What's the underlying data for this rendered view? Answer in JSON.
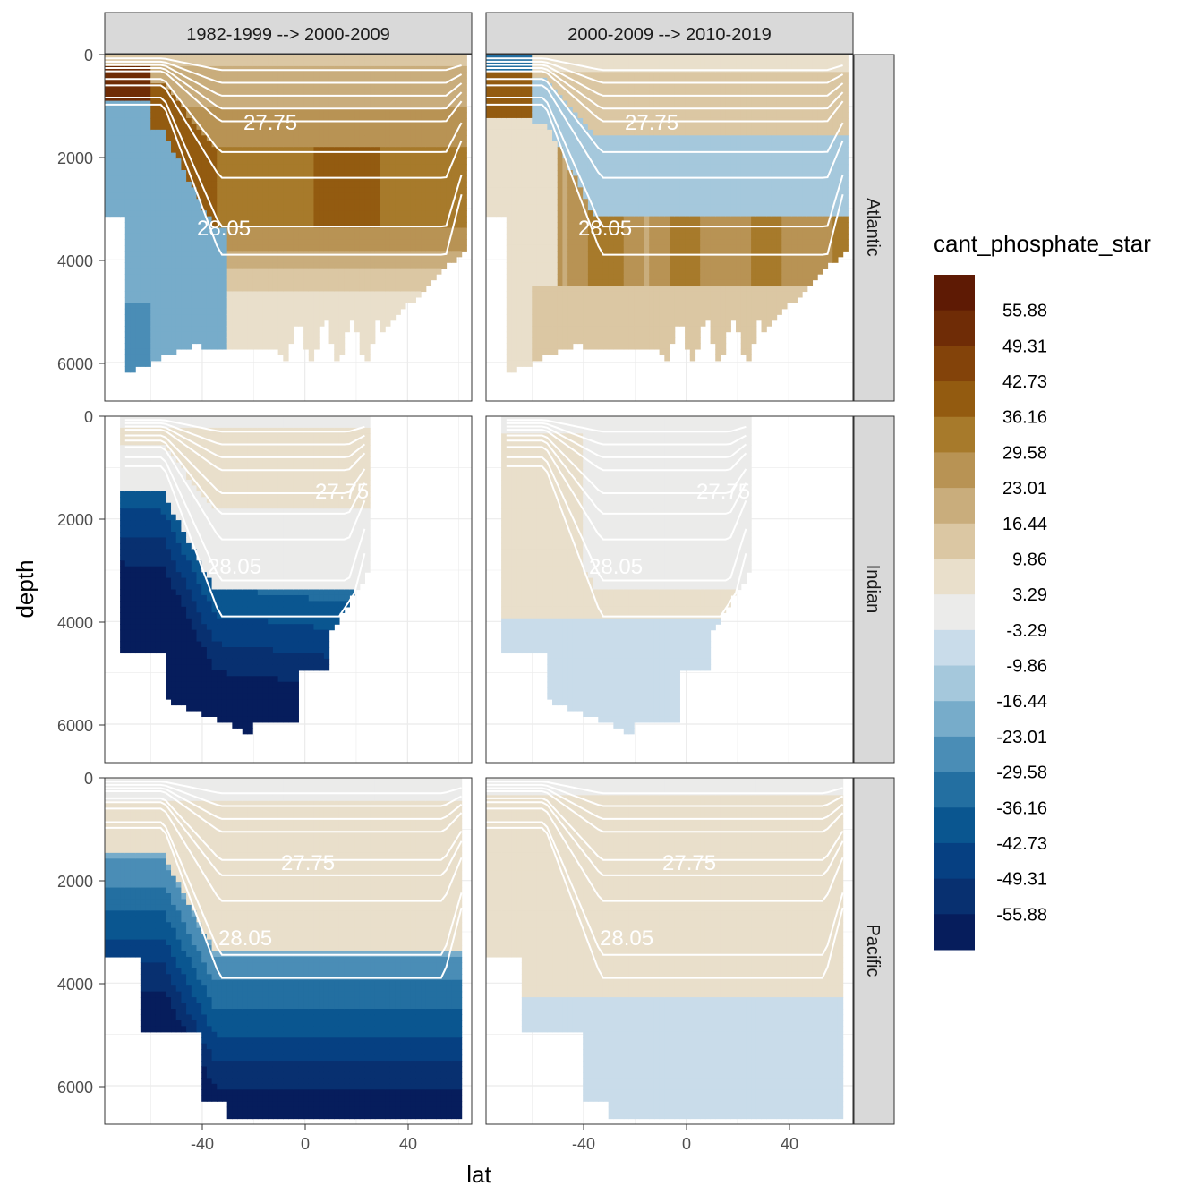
{
  "chart_data": {
    "type": "heatmap",
    "title": "",
    "xlabel": "lat",
    "ylabel": "depth",
    "xlim": [
      -78,
      65
    ],
    "ylim": [
      6750,
      0
    ],
    "x_ticks": [
      -40,
      0,
      40
    ],
    "x_tick_labels": [
      "-40",
      "0",
      "40"
    ],
    "y_ticks": [
      0,
      2000,
      4000,
      6000
    ],
    "y_tick_labels": [
      "0",
      "2000",
      "4000",
      "6000"
    ],
    "column_facets": [
      "1982-1999 --> 2000-2009",
      "2000-2009 --> 2010-2019"
    ],
    "row_facets": [
      "Atlantic",
      "Indian",
      "Pacific"
    ],
    "contour_labels": [
      "27.75",
      "28.05"
    ],
    "legend": {
      "title": "cant_phosphate_star",
      "position": "right",
      "labels": [
        "55.88",
        "49.31",
        "42.73",
        "36.16",
        "29.58",
        "23.01",
        "16.44",
        "9.86",
        "3.29",
        "-3.29",
        "-9.86",
        "-16.44",
        "-23.01",
        "-29.58",
        "-36.16",
        "-42.73",
        "-49.31",
        "-55.88"
      ],
      "colors": [
        "#5e1a04",
        "#6f2c06",
        "#83430a",
        "#935b10",
        "#a77a2b",
        "#b89354",
        "#c9ad7c",
        "#dbc7a3",
        "#e9dfcb",
        "#ebebea",
        "#c9dcea",
        "#a5c8dc",
        "#77acca",
        "#4a8db6",
        "#236fa1",
        "#0a5690",
        "#064082",
        "#083070",
        "#061d5c"
      ]
    },
    "section_profiles": [
      {
        "facet": "Atlantic / 1982-1999 --> 2000-2009",
        "mode": 1,
        "deep_mode": 1,
        "contour_27_75_depth": 1300,
        "contour_28_05_depth": 3350
      },
      {
        "facet": "Atlantic / 2000-2009 --> 2010-2019",
        "mode": 2,
        "deep_mode": 2,
        "contour_27_75_depth": 1300,
        "contour_28_05_depth": 3350
      },
      {
        "facet": "Indian / 1982-1999 --> 2000-2009",
        "mode": 3,
        "deep_mode": 3,
        "contour_27_75_depth": 1500,
        "contour_28_05_depth": 3200
      },
      {
        "facet": "Indian / 2000-2009 --> 2010-2019",
        "mode": 4,
        "deep_mode": 4,
        "contour_27_75_depth": 1500,
        "contour_28_05_depth": 3200
      },
      {
        "facet": "Pacific / 1982-1999 --> 2000-2009",
        "mode": 5,
        "deep_mode": 5,
        "contour_27_75_depth": 1600,
        "contour_28_05_depth": 3450
      },
      {
        "facet": "Pacific / 2000-2009 --> 2010-2019",
        "mode": 6,
        "deep_mode": 6,
        "contour_27_75_depth": 1600,
        "contour_28_05_depth": 3450
      }
    ]
  }
}
